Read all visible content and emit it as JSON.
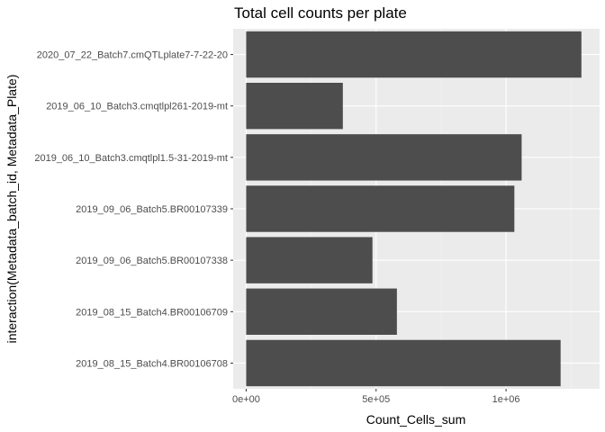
{
  "chart_data": {
    "type": "bar",
    "orientation": "horizontal",
    "title": "Total cell counts per plate",
    "xlabel": "Count_Cells_sum",
    "ylabel": "interaction(Metadata_batch_id, Metadata_Plate)",
    "categories": [
      "2020_07_22_Batch7.cmQTLplate7-7-22-20",
      "2019_06_10_Batch3.cmqtlpl261-2019-mt",
      "2019_06_10_Batch3.cmqtlpl1.5-31-2019-mt",
      "2019_09_06_Batch5.BR00107339",
      "2019_09_06_Batch5.BR00107338",
      "2019_08_15_Batch4.BR00106709",
      "2019_08_15_Batch4.BR00106708"
    ],
    "values": [
      1290000,
      372000,
      1060000,
      1032000,
      486000,
      580000,
      1210000
    ],
    "xlim": [
      -50000,
      1360000
    ],
    "xticks": [
      0,
      500000,
      1000000
    ],
    "xtick_labels": [
      "0e+00",
      "5e+05",
      "1e+06"
    ],
    "x_minor_ticks": [
      250000,
      750000,
      1250000
    ],
    "grid": true,
    "colors": {
      "bar": "#4d4d4d",
      "panel": "#ebebeb",
      "grid_major": "#ffffff",
      "grid_minor": "#f5f5f5"
    }
  }
}
